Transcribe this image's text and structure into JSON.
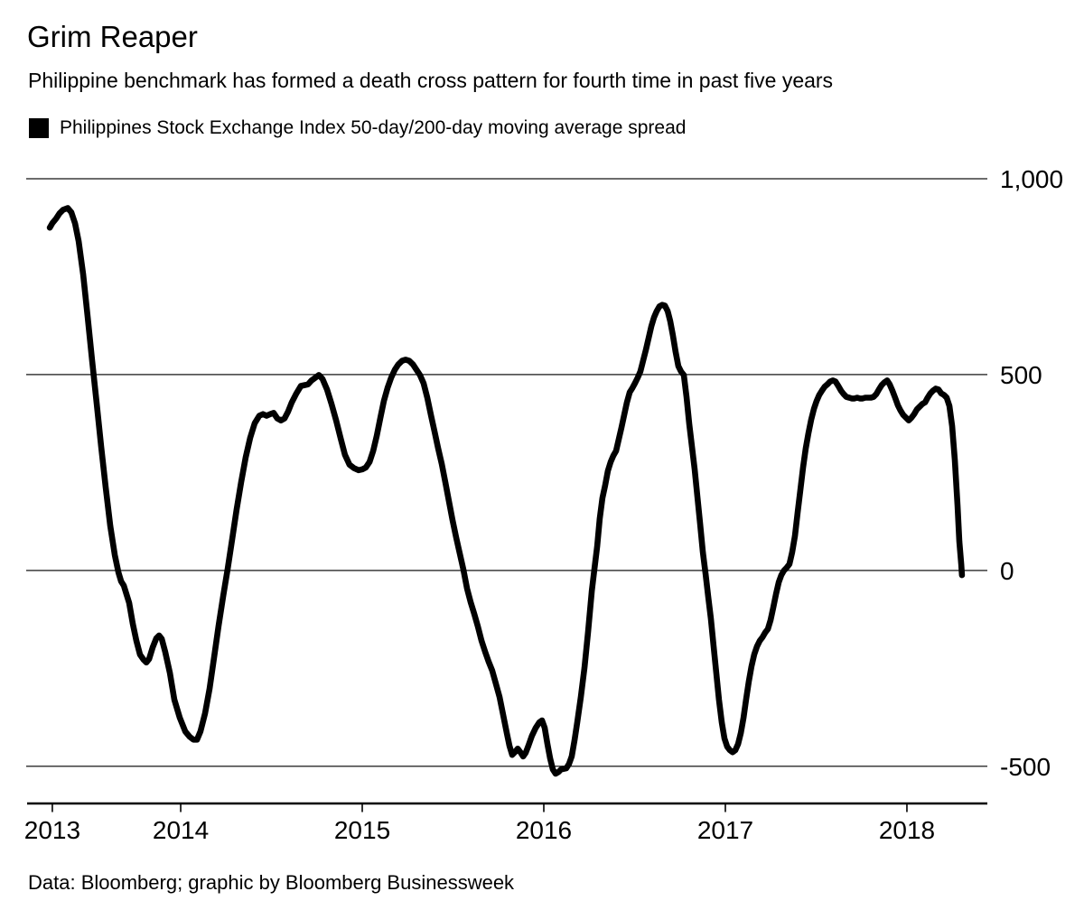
{
  "page": {
    "title": "Grim Reaper",
    "subtitle": "Philippine benchmark has formed a death cross pattern for fourth time in past five years",
    "source": "Data: Bloomberg; graphic by Bloomberg Businessweek"
  },
  "legend": {
    "swatch_color": "#000000",
    "label": "Philippines Stock Exchange Index 50-day/200-day moving average spread"
  },
  "chart_data": {
    "type": "line",
    "title": "Grim Reaper",
    "subtitle": "Philippine benchmark has formed a death cross pattern for fourth time in past five years",
    "xlabel": "",
    "ylabel": "",
    "grid": "horizontal",
    "legend_position": "top-left",
    "background": "#ffffff",
    "grid_color": "#3c3c3c",
    "axis_color": "#000000",
    "x_range": [
      2013.154,
      2018.443
    ],
    "y_range": [
      -595,
      1000
    ],
    "y_ticks": [
      {
        "label": "1,000",
        "v": 1000
      },
      {
        "label": "500",
        "v": 500
      },
      {
        "label": "0",
        "v": 0
      },
      {
        "label": "-500",
        "v": -500
      }
    ],
    "x_ticks": [
      {
        "label": "2013",
        "t": 2013.293
      },
      {
        "label": "2014",
        "t": 2014.0
      },
      {
        "label": "2015",
        "t": 2015.0
      },
      {
        "label": "2016",
        "t": 2016.0
      },
      {
        "label": "2017",
        "t": 2017.0
      },
      {
        "label": "2018",
        "t": 2018.0
      }
    ],
    "series": [
      {
        "name": "Philippines Stock Exchange Index 50-day/200-day moving average spread",
        "color": "#000000",
        "line_width": 6.6,
        "points": [
          [
            2013.279,
            875
          ],
          [
            2013.294,
            887
          ],
          [
            2013.313,
            898
          ],
          [
            2013.333,
            912
          ],
          [
            2013.353,
            921
          ],
          [
            2013.378,
            925
          ],
          [
            2013.398,
            914
          ],
          [
            2013.418,
            886
          ],
          [
            2013.438,
            840
          ],
          [
            2013.463,
            755
          ],
          [
            2013.488,
            646
          ],
          [
            2013.512,
            535
          ],
          [
            2013.537,
            427
          ],
          [
            2013.562,
            316
          ],
          [
            2013.587,
            212
          ],
          [
            2013.612,
            113
          ],
          [
            2013.637,
            39
          ],
          [
            2013.657,
            -5
          ],
          [
            2013.672,
            -28
          ],
          [
            2013.687,
            -39
          ],
          [
            2013.701,
            -60
          ],
          [
            2013.716,
            -83
          ],
          [
            2013.736,
            -136
          ],
          [
            2013.756,
            -180
          ],
          [
            2013.776,
            -215
          ],
          [
            2013.796,
            -228
          ],
          [
            2013.811,
            -235
          ],
          [
            2013.826,
            -226
          ],
          [
            2013.846,
            -196
          ],
          [
            2013.866,
            -173
          ],
          [
            2013.881,
            -166
          ],
          [
            2013.896,
            -175
          ],
          [
            2013.915,
            -208
          ],
          [
            2013.94,
            -261
          ],
          [
            2013.965,
            -330
          ],
          [
            2013.995,
            -376
          ],
          [
            2014.025,
            -411
          ],
          [
            2014.05,
            -425
          ],
          [
            2014.07,
            -432
          ],
          [
            2014.09,
            -432
          ],
          [
            2014.109,
            -411
          ],
          [
            2014.134,
            -365
          ],
          [
            2014.159,
            -302
          ],
          [
            2014.184,
            -222
          ],
          [
            2014.209,
            -141
          ],
          [
            2014.234,
            -65
          ],
          [
            2014.259,
            5
          ],
          [
            2014.284,
            81
          ],
          [
            2014.308,
            155
          ],
          [
            2014.333,
            226
          ],
          [
            2014.358,
            289
          ],
          [
            2014.383,
            339
          ],
          [
            2014.408,
            376
          ],
          [
            2014.433,
            395
          ],
          [
            2014.453,
            399
          ],
          [
            2014.473,
            395
          ],
          [
            2014.493,
            399
          ],
          [
            2014.512,
            402
          ],
          [
            2014.532,
            388
          ],
          [
            2014.552,
            383
          ],
          [
            2014.572,
            388
          ],
          [
            2014.592,
            406
          ],
          [
            2014.612,
            429
          ],
          [
            2014.637,
            452
          ],
          [
            2014.662,
            471
          ],
          [
            2014.682,
            473
          ],
          [
            2014.701,
            475
          ],
          [
            2014.721,
            485
          ],
          [
            2014.741,
            492
          ],
          [
            2014.761,
            499
          ],
          [
            2014.781,
            489
          ],
          [
            2014.806,
            462
          ],
          [
            2014.831,
            425
          ],
          [
            2014.856,
            383
          ],
          [
            2014.881,
            337
          ],
          [
            2014.905,
            295
          ],
          [
            2014.93,
            270
          ],
          [
            2014.955,
            261
          ],
          [
            2014.98,
            256
          ],
          [
            2015.0,
            258
          ],
          [
            2015.02,
            263
          ],
          [
            2015.04,
            277
          ],
          [
            2015.06,
            305
          ],
          [
            2015.08,
            344
          ],
          [
            2015.1,
            390
          ],
          [
            2015.119,
            432
          ],
          [
            2015.139,
            466
          ],
          [
            2015.159,
            492
          ],
          [
            2015.179,
            512
          ],
          [
            2015.199,
            526
          ],
          [
            2015.219,
            535
          ],
          [
            2015.239,
            538
          ],
          [
            2015.259,
            535
          ],
          [
            2015.279,
            526
          ],
          [
            2015.299,
            512
          ],
          [
            2015.318,
            499
          ],
          [
            2015.338,
            478
          ],
          [
            2015.358,
            441
          ],
          [
            2015.378,
            397
          ],
          [
            2015.398,
            355
          ],
          [
            2015.418,
            312
          ],
          [
            2015.438,
            272
          ],
          [
            2015.458,
            224
          ],
          [
            2015.478,
            175
          ],
          [
            2015.497,
            129
          ],
          [
            2015.517,
            85
          ],
          [
            2015.537,
            44
          ],
          [
            2015.557,
            2
          ],
          [
            2015.577,
            -46
          ],
          [
            2015.597,
            -81
          ],
          [
            2015.617,
            -111
          ],
          [
            2015.637,
            -143
          ],
          [
            2015.657,
            -180
          ],
          [
            2015.677,
            -208
          ],
          [
            2015.696,
            -233
          ],
          [
            2015.716,
            -256
          ],
          [
            2015.736,
            -289
          ],
          [
            2015.756,
            -323
          ],
          [
            2015.776,
            -369
          ],
          [
            2015.796,
            -415
          ],
          [
            2015.811,
            -448
          ],
          [
            2015.826,
            -471
          ],
          [
            2015.841,
            -464
          ],
          [
            2015.856,
            -455
          ],
          [
            2015.871,
            -464
          ],
          [
            2015.886,
            -475
          ],
          [
            2015.9,
            -466
          ],
          [
            2015.915,
            -448
          ],
          [
            2015.935,
            -422
          ],
          [
            2015.955,
            -402
          ],
          [
            2015.975,
            -388
          ],
          [
            2015.99,
            -383
          ],
          [
            2016.005,
            -402
          ],
          [
            2016.02,
            -443
          ],
          [
            2016.035,
            -480
          ],
          [
            2016.05,
            -508
          ],
          [
            2016.065,
            -519
          ],
          [
            2016.08,
            -515
          ],
          [
            2016.095,
            -508
          ],
          [
            2016.124,
            -505
          ],
          [
            2016.139,
            -494
          ],
          [
            2016.154,
            -475
          ],
          [
            2016.169,
            -434
          ],
          [
            2016.184,
            -388
          ],
          [
            2016.204,
            -323
          ],
          [
            2016.224,
            -249
          ],
          [
            2016.244,
            -157
          ],
          [
            2016.264,
            -53
          ],
          [
            2016.279,
            5
          ],
          [
            2016.294,
            62
          ],
          [
            2016.308,
            132
          ],
          [
            2016.323,
            185
          ],
          [
            2016.338,
            217
          ],
          [
            2016.353,
            254
          ],
          [
            2016.368,
            277
          ],
          [
            2016.383,
            293
          ],
          [
            2016.398,
            305
          ],
          [
            2016.413,
            335
          ],
          [
            2016.428,
            365
          ],
          [
            2016.443,
            397
          ],
          [
            2016.458,
            429
          ],
          [
            2016.473,
            455
          ],
          [
            2016.488,
            466
          ],
          [
            2016.502,
            478
          ],
          [
            2016.517,
            492
          ],
          [
            2016.532,
            508
          ],
          [
            2016.547,
            535
          ],
          [
            2016.562,
            563
          ],
          [
            2016.577,
            593
          ],
          [
            2016.592,
            623
          ],
          [
            2016.607,
            646
          ],
          [
            2016.622,
            662
          ],
          [
            2016.637,
            674
          ],
          [
            2016.652,
            678
          ],
          [
            2016.667,
            676
          ],
          [
            2016.682,
            662
          ],
          [
            2016.696,
            637
          ],
          [
            2016.711,
            600
          ],
          [
            2016.726,
            558
          ],
          [
            2016.741,
            522
          ],
          [
            2016.756,
            508
          ],
          [
            2016.771,
            499
          ],
          [
            2016.786,
            443
          ],
          [
            2016.801,
            374
          ],
          [
            2016.816,
            316
          ],
          [
            2016.831,
            258
          ],
          [
            2016.846,
            189
          ],
          [
            2016.861,
            120
          ],
          [
            2016.876,
            46
          ],
          [
            2016.891,
            -9
          ],
          [
            2016.905,
            -65
          ],
          [
            2016.92,
            -122
          ],
          [
            2016.935,
            -192
          ],
          [
            2016.95,
            -261
          ],
          [
            2016.965,
            -330
          ],
          [
            2016.98,
            -388
          ],
          [
            2016.995,
            -429
          ],
          [
            2017.01,
            -450
          ],
          [
            2017.025,
            -459
          ],
          [
            2017.04,
            -464
          ],
          [
            2017.055,
            -459
          ],
          [
            2017.07,
            -443
          ],
          [
            2017.085,
            -415
          ],
          [
            2017.1,
            -376
          ],
          [
            2017.114,
            -330
          ],
          [
            2017.129,
            -284
          ],
          [
            2017.144,
            -245
          ],
          [
            2017.159,
            -215
          ],
          [
            2017.174,
            -194
          ],
          [
            2017.189,
            -180
          ],
          [
            2017.204,
            -171
          ],
          [
            2017.219,
            -159
          ],
          [
            2017.234,
            -150
          ],
          [
            2017.249,
            -127
          ],
          [
            2017.264,
            -95
          ],
          [
            2017.279,
            -60
          ],
          [
            2017.294,
            -30
          ],
          [
            2017.308,
            -12
          ],
          [
            2017.323,
            0
          ],
          [
            2017.338,
            7
          ],
          [
            2017.353,
            16
          ],
          [
            2017.368,
            46
          ],
          [
            2017.383,
            88
          ],
          [
            2017.398,
            148
          ],
          [
            2017.413,
            205
          ],
          [
            2017.428,
            263
          ],
          [
            2017.443,
            312
          ],
          [
            2017.458,
            351
          ],
          [
            2017.473,
            385
          ],
          [
            2017.488,
            413
          ],
          [
            2017.502,
            432
          ],
          [
            2017.517,
            448
          ],
          [
            2017.532,
            459
          ],
          [
            2017.547,
            469
          ],
          [
            2017.562,
            475
          ],
          [
            2017.577,
            482
          ],
          [
            2017.592,
            485
          ],
          [
            2017.607,
            482
          ],
          [
            2017.622,
            471
          ],
          [
            2017.637,
            459
          ],
          [
            2017.652,
            450
          ],
          [
            2017.667,
            443
          ],
          [
            2017.682,
            441
          ],
          [
            2017.696,
            439
          ],
          [
            2017.711,
            439
          ],
          [
            2017.726,
            441
          ],
          [
            2017.741,
            439
          ],
          [
            2017.756,
            439
          ],
          [
            2017.771,
            441
          ],
          [
            2017.786,
            441
          ],
          [
            2017.801,
            441
          ],
          [
            2017.816,
            443
          ],
          [
            2017.831,
            450
          ],
          [
            2017.846,
            462
          ],
          [
            2017.861,
            473
          ],
          [
            2017.876,
            480
          ],
          [
            2017.891,
            485
          ],
          [
            2017.905,
            475
          ],
          [
            2017.92,
            459
          ],
          [
            2017.935,
            441
          ],
          [
            2017.95,
            422
          ],
          [
            2017.965,
            408
          ],
          [
            2017.98,
            397
          ],
          [
            2017.995,
            390
          ],
          [
            2018.01,
            383
          ],
          [
            2018.025,
            390
          ],
          [
            2018.04,
            399
          ],
          [
            2018.055,
            411
          ],
          [
            2018.07,
            418
          ],
          [
            2018.085,
            425
          ],
          [
            2018.1,
            429
          ],
          [
            2018.114,
            441
          ],
          [
            2018.129,
            452
          ],
          [
            2018.144,
            459
          ],
          [
            2018.159,
            464
          ],
          [
            2018.174,
            462
          ],
          [
            2018.189,
            452
          ],
          [
            2018.204,
            448
          ],
          [
            2018.219,
            441
          ],
          [
            2018.234,
            420
          ],
          [
            2018.249,
            369
          ],
          [
            2018.264,
            282
          ],
          [
            2018.279,
            166
          ],
          [
            2018.289,
            74
          ],
          [
            2018.299,
            16
          ],
          [
            2018.303,
            -12
          ]
        ]
      }
    ]
  }
}
